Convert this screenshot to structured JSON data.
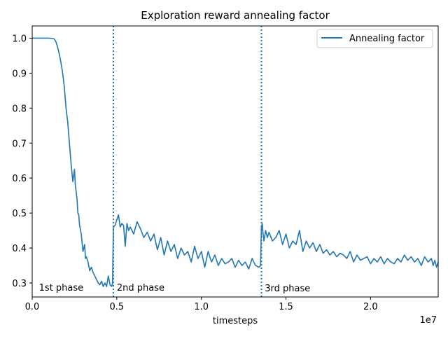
{
  "chart_data": {
    "type": "line",
    "title": "Exploration reward annealing factor",
    "xlabel": "timesteps",
    "ylabel": "",
    "x_offset_label": "1e7",
    "xlim": [
      0,
      2.4
    ],
    "ylim": [
      0.26,
      1.035
    ],
    "x_ticks": [
      0,
      0.5,
      1.0,
      1.5,
      2.0
    ],
    "x_tick_labels": [
      "0.0",
      "0.5",
      "1.0",
      "1.5",
      "2.0"
    ],
    "y_ticks": [
      0.3,
      0.4,
      0.5,
      0.6,
      0.7,
      0.8,
      0.9,
      1.0
    ],
    "y_tick_labels": [
      "0.3",
      "0.4",
      "0.5",
      "0.6",
      "0.7",
      "0.8",
      "0.9",
      "1.0"
    ],
    "legend": {
      "position": "top-right",
      "entries": [
        "Annealing factor"
      ]
    },
    "colors": {
      "series": "#1f77b4",
      "phase_line": "#1f77b4"
    },
    "phase_lines": [
      0.48,
      1.355
    ],
    "annotations": [
      {
        "text": "1st phase",
        "x": 0.04,
        "y": 0.28
      },
      {
        "text": "2nd phase",
        "x": 0.5,
        "y": 0.28
      },
      {
        "text": "3rd phase",
        "x": 1.375,
        "y": 0.278
      }
    ],
    "series": [
      {
        "name": "Annealing factor",
        "x": [
          0,
          0.1,
          0.13,
          0.14,
          0.15,
          0.16,
          0.17,
          0.18,
          0.19,
          0.2,
          0.21,
          0.22,
          0.23,
          0.24,
          0.25,
          0.255,
          0.26,
          0.265,
          0.27,
          0.275,
          0.28,
          0.29,
          0.3,
          0.31,
          0.315,
          0.32,
          0.33,
          0.34,
          0.35,
          0.36,
          0.37,
          0.38,
          0.39,
          0.4,
          0.41,
          0.42,
          0.43,
          0.44,
          0.45,
          0.46,
          0.47,
          0.475,
          0.48,
          0.49,
          0.5,
          0.51,
          0.52,
          0.53,
          0.54,
          0.55,
          0.56,
          0.57,
          0.58,
          0.6,
          0.62,
          0.64,
          0.66,
          0.68,
          0.7,
          0.72,
          0.74,
          0.76,
          0.78,
          0.8,
          0.82,
          0.84,
          0.86,
          0.88,
          0.9,
          0.92,
          0.94,
          0.96,
          0.98,
          1.0,
          1.02,
          1.04,
          1.06,
          1.08,
          1.1,
          1.12,
          1.14,
          1.16,
          1.18,
          1.2,
          1.22,
          1.24,
          1.26,
          1.28,
          1.3,
          1.32,
          1.34,
          1.35,
          1.355,
          1.36,
          1.365,
          1.37,
          1.38,
          1.39,
          1.4,
          1.42,
          1.44,
          1.46,
          1.48,
          1.5,
          1.52,
          1.54,
          1.56,
          1.58,
          1.6,
          1.62,
          1.64,
          1.66,
          1.68,
          1.7,
          1.72,
          1.74,
          1.76,
          1.78,
          1.8,
          1.82,
          1.84,
          1.86,
          1.88,
          1.9,
          1.92,
          1.94,
          1.96,
          1.98,
          2.0,
          2.02,
          2.04,
          2.06,
          2.08,
          2.1,
          2.12,
          2.14,
          2.16,
          2.18,
          2.2,
          2.22,
          2.24,
          2.26,
          2.28,
          2.3,
          2.32,
          2.34,
          2.36,
          2.37,
          2.38,
          2.39,
          2.4
        ],
        "values": [
          1.0,
          1.0,
          0.998,
          0.99,
          0.975,
          0.955,
          0.93,
          0.9,
          0.86,
          0.8,
          0.76,
          0.7,
          0.64,
          0.59,
          0.625,
          0.58,
          0.56,
          0.54,
          0.5,
          0.495,
          0.465,
          0.44,
          0.39,
          0.41,
          0.37,
          0.375,
          0.36,
          0.335,
          0.345,
          0.33,
          0.32,
          0.31,
          0.3,
          0.295,
          0.305,
          0.29,
          0.3,
          0.29,
          0.32,
          0.295,
          0.29,
          0.3,
          0.46,
          0.465,
          0.48,
          0.495,
          0.46,
          0.47,
          0.465,
          0.405,
          0.47,
          0.45,
          0.46,
          0.44,
          0.475,
          0.455,
          0.43,
          0.445,
          0.42,
          0.44,
          0.395,
          0.43,
          0.38,
          0.42,
          0.39,
          0.41,
          0.37,
          0.4,
          0.38,
          0.39,
          0.36,
          0.405,
          0.37,
          0.39,
          0.345,
          0.39,
          0.36,
          0.38,
          0.35,
          0.37,
          0.355,
          0.36,
          0.37,
          0.345,
          0.365,
          0.35,
          0.36,
          0.34,
          0.37,
          0.35,
          0.345,
          0.35,
          0.46,
          0.47,
          0.44,
          0.42,
          0.45,
          0.43,
          0.445,
          0.42,
          0.43,
          0.45,
          0.41,
          0.44,
          0.4,
          0.42,
          0.41,
          0.45,
          0.39,
          0.42,
          0.4,
          0.415,
          0.39,
          0.41,
          0.385,
          0.395,
          0.38,
          0.39,
          0.375,
          0.385,
          0.38,
          0.37,
          0.39,
          0.36,
          0.38,
          0.365,
          0.37,
          0.375,
          0.355,
          0.37,
          0.36,
          0.375,
          0.355,
          0.37,
          0.36,
          0.355,
          0.37,
          0.36,
          0.38,
          0.365,
          0.375,
          0.36,
          0.37,
          0.35,
          0.375,
          0.36,
          0.37,
          0.35,
          0.365,
          0.345,
          0.36
        ]
      }
    ]
  }
}
